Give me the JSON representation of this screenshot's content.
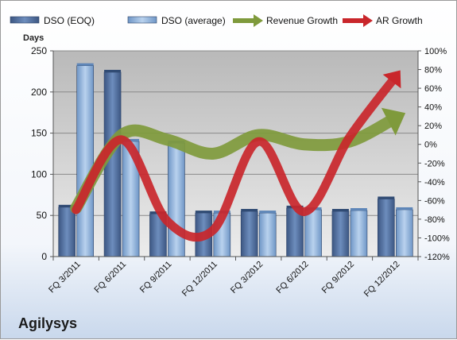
{
  "chart_data": {
    "type": "bar",
    "company": "Agilysys",
    "ylabel": "Days",
    "ylim": [
      0,
      250
    ],
    "y2lim": [
      -120,
      100
    ],
    "y_ticks": [
      0,
      50,
      100,
      150,
      200,
      250
    ],
    "y2_ticks": [
      "-120%",
      "-100%",
      "-80%",
      "-60%",
      "-40%",
      "-20%",
      "0%",
      "20%",
      "40%",
      "60%",
      "80%",
      "100%"
    ],
    "categories": [
      "FQ 3/2011",
      "FQ 6/2011",
      "FQ 9/2011",
      "FQ 12/2011",
      "FQ 3/2012",
      "FQ 6/2012",
      "FQ 9/2012",
      "FQ 12/2012"
    ],
    "series": [
      {
        "name": "DSO (EOQ)",
        "kind": "bar",
        "axis": "left",
        "color": "#4a6a9c",
        "values": [
          60,
          224,
          52,
          53,
          55,
          59,
          55,
          70
        ]
      },
      {
        "name": "DSO (average)",
        "kind": "bar",
        "axis": "left",
        "color": "#8fb2dc",
        "values": [
          232,
          140,
          138,
          53,
          53,
          57,
          56,
          57
        ]
      },
      {
        "name": "Revenue Growth",
        "kind": "arrow-line",
        "axis": "right",
        "color": "#7f9a3c",
        "values": [
          -68,
          10,
          5,
          -10,
          10,
          0,
          3,
          28
        ]
      },
      {
        "name": "AR Growth",
        "kind": "arrow-line",
        "axis": "right",
        "color": "#c9262b",
        "values": [
          -70,
          5,
          -82,
          -92,
          3,
          -72,
          8,
          72
        ]
      }
    ],
    "plot_background": [
      "#bcbcbc",
      "#e6e6e6"
    ],
    "grid": true,
    "legend_position": "top"
  }
}
